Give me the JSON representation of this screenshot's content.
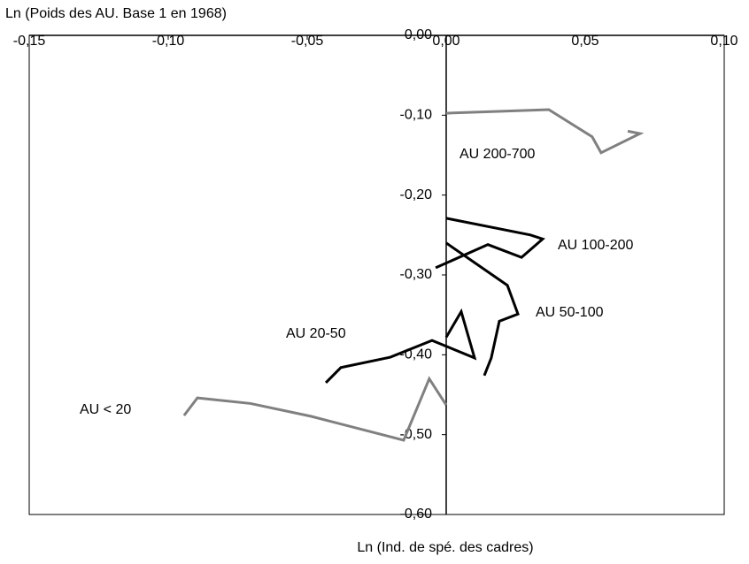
{
  "chart_data": {
    "type": "line-scatter",
    "y_label": "Ln (Poids des AU. Base 1 en 1968)",
    "x_label": "Ln (Ind. de spé. des cadres)",
    "xlim": [
      -0.15,
      0.1
    ],
    "ylim": [
      -0.6,
      0.0
    ],
    "xticks": [
      {
        "value": -0.15,
        "label": "-0,15"
      },
      {
        "value": -0.1,
        "label": "-0,10"
      },
      {
        "value": -0.05,
        "label": "-0,05"
      },
      {
        "value": 0,
        "label": "0,00"
      },
      {
        "value": 0.05,
        "label": "0,05"
      },
      {
        "value": 0.1,
        "label": "0,10"
      }
    ],
    "yticks": [
      {
        "value": 0,
        "label": "0,00"
      },
      {
        "value": -0.1,
        "label": "-0,10"
      },
      {
        "value": -0.2,
        "label": "-0,20"
      },
      {
        "value": -0.3,
        "label": "-0,30"
      },
      {
        "value": -0.4,
        "label": "-0,40"
      },
      {
        "value": -0.5,
        "label": "-0,50"
      },
      {
        "value": -0.6,
        "label": "-0,60"
      }
    ],
    "series": [
      {
        "name": "AU 200-700",
        "color": "#808080",
        "x": [
          0,
          0.0369,
          0.0525,
          0.0557,
          0.0697,
          0.0653
        ],
        "values": [
          -0.0975,
          -0.093,
          -0.127,
          -0.147,
          -0.123,
          -0.12
        ]
      },
      {
        "name": "AU 100-200",
        "color": "#000000",
        "x": [
          0,
          0.0303,
          0.0347,
          0.0271,
          0.015,
          -0.0038
        ],
        "values": [
          -0.229,
          -0.25,
          -0.255,
          -0.278,
          -0.262,
          -0.291
        ]
      },
      {
        "name": "AU 50-100",
        "color": "#000000",
        "x": [
          0,
          0.022,
          0.0258,
          0.0191,
          0.0162,
          0.0137
        ],
        "values": [
          -0.26,
          -0.313,
          -0.349,
          -0.358,
          -0.404,
          -0.426
        ]
      },
      {
        "name": "AU 20-50",
        "color": "#000000",
        "x": [
          -0.0433,
          -0.0379,
          -0.0201,
          -0.0051,
          0.0102,
          0.0054,
          0
        ],
        "values": [
          -0.435,
          -0.416,
          -0.403,
          -0.382,
          -0.404,
          -0.346,
          -0.378
        ]
      },
      {
        "name": "AU < 20",
        "color": "#808080",
        "x": [
          -0.0943,
          -0.0895,
          -0.0704,
          -0.0487,
          -0.0153,
          -0.0061,
          0
        ],
        "values": [
          -0.476,
          -0.454,
          -0.461,
          -0.477,
          -0.507,
          -0.43,
          -0.463
        ]
      }
    ]
  }
}
